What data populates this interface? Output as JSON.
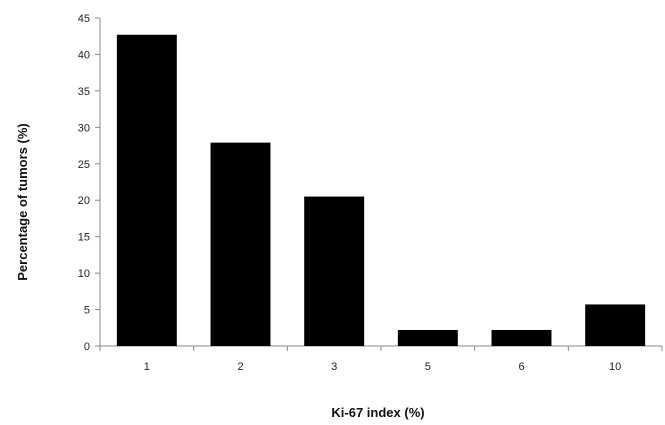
{
  "chart_data": {
    "type": "bar",
    "title": "",
    "xlabel": "Ki-67 index (%)",
    "ylabel": "Percentage  of  tumors (%)",
    "categories": [
      "1",
      "2",
      "3",
      "5",
      "6",
      "10"
    ],
    "values": [
      42.7,
      27.9,
      20.5,
      2.2,
      2.2,
      5.7
    ],
    "ylim": [
      0,
      45
    ],
    "yticks": [
      "0",
      "5",
      "10",
      "15",
      "20",
      "25",
      "30",
      "35",
      "40",
      "45"
    ],
    "grid": false,
    "bar_color": "#000000"
  }
}
